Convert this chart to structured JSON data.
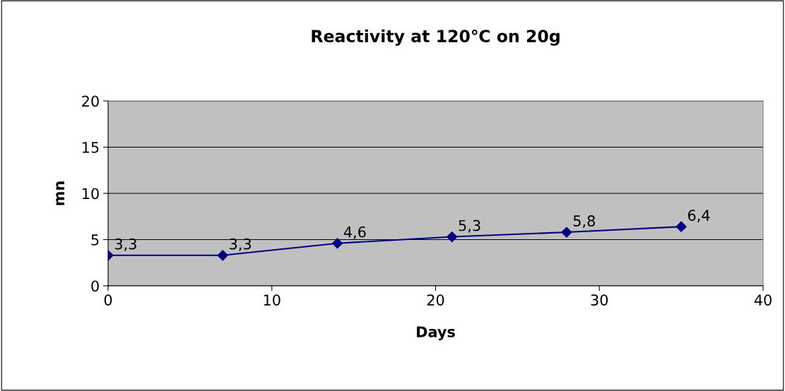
{
  "chart_data": {
    "type": "line",
    "title": "Reactivity at 120℃ on 20g",
    "xlabel": "Days",
    "ylabel": "mn",
    "x": [
      0,
      7,
      14,
      21,
      28,
      35
    ],
    "series": [
      {
        "color": "#000080",
        "values": [
          3.3,
          3.3,
          4.6,
          5.3,
          5.8,
          6.4
        ],
        "value_labels": [
          "3,3",
          "3,3",
          "4,6",
          "5,3",
          "5,8",
          "6,4"
        ]
      }
    ],
    "xlim": [
      0,
      40
    ],
    "xticks": [
      0,
      10,
      20,
      30,
      40
    ],
    "ylim": [
      0,
      20
    ],
    "yticks": [
      0,
      5,
      10,
      15,
      20
    ],
    "grid": "y",
    "legend": false,
    "marker": "diamond",
    "line_style": "solid"
  }
}
